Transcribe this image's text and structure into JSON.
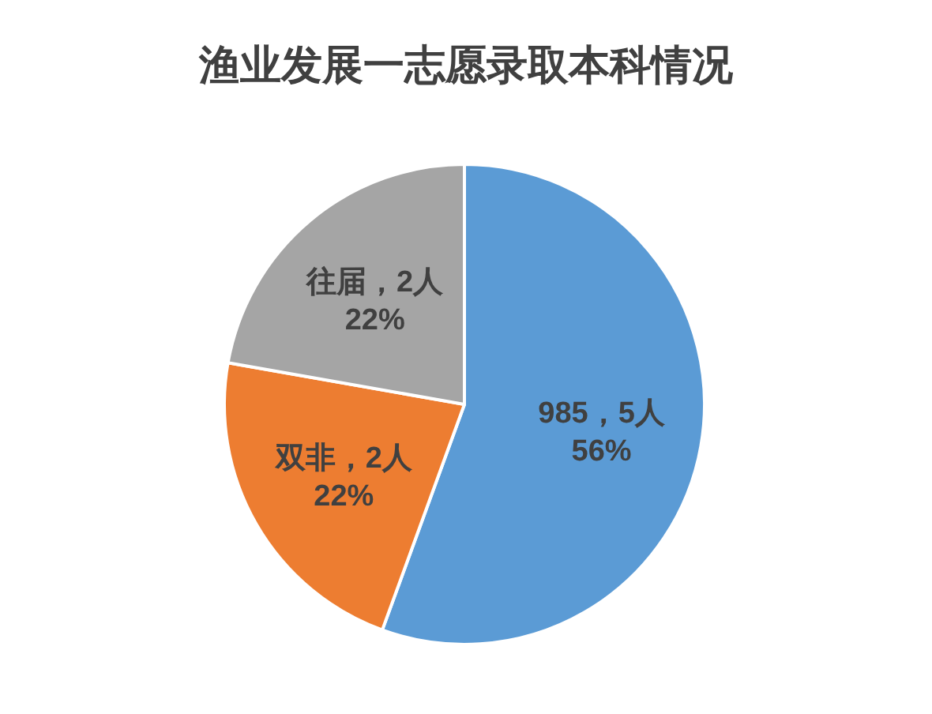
{
  "chart_data": {
    "type": "pie",
    "title": "渔业发展一志愿录取本科情况",
    "categories": [
      "985",
      "双非",
      "往届"
    ],
    "values": [
      5,
      2,
      2
    ],
    "colors": [
      "#5b9bd5",
      "#ed7d31",
      "#a5a5a5"
    ],
    "value_labels": [
      "5人\n56%",
      "2人\n22%",
      "2人\n22%"
    ]
  }
}
